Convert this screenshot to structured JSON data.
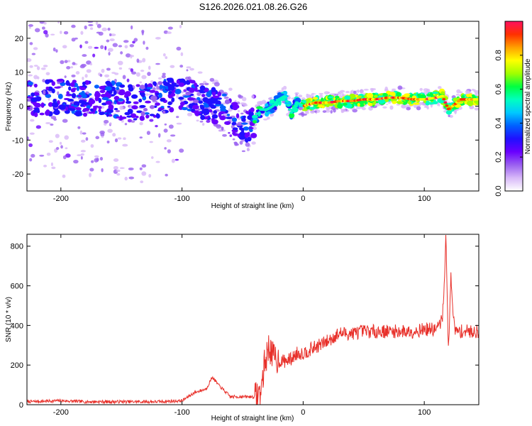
{
  "title": "S126.2026.021.08.26.G26",
  "chart_data": [
    {
      "type": "heatmap",
      "name": "spectrogram",
      "xlabel": "Height of straight line (km)",
      "ylabel": "Frequency (Hz)",
      "xlim": [
        -228,
        145
      ],
      "ylim": [
        -25,
        25
      ],
      "xticks": [
        -200,
        -100,
        0,
        100
      ],
      "yticks": [
        -20,
        -10,
        0,
        10,
        20
      ],
      "colorbar": {
        "label": "Normalized spectral amplitude",
        "range": [
          0,
          1
        ],
        "ticks": [
          0.0,
          0.2,
          0.4,
          0.6,
          0.8
        ],
        "colormap": [
          "#ffffff",
          "#d8b8f8",
          "#9a60f0",
          "#6a00ff",
          "#2010ff",
          "#0060ff",
          "#00c8ff",
          "#00ffc0",
          "#00ff40",
          "#a0ff00",
          "#ffff00",
          "#ffa000",
          "#ff3000",
          "#ff1060"
        ]
      },
      "ridge": {
        "x": [
          -228,
          -200,
          -180,
          -160,
          -140,
          -120,
          -100,
          -90,
          -80,
          -70,
          -60,
          -50,
          -45,
          -40,
          -35,
          -30,
          -25,
          -20,
          -15,
          -10,
          -5,
          0,
          10,
          20,
          30,
          40,
          50,
          60,
          70,
          80,
          90,
          100,
          110,
          115,
          120,
          130,
          145
        ],
        "y": [
          2,
          3,
          2,
          2,
          1,
          2,
          4,
          3,
          1,
          0,
          -3,
          -5,
          -7,
          -4,
          -1,
          -1,
          0,
          2,
          3,
          -2,
          1,
          0,
          1,
          1,
          1.5,
          1.5,
          2,
          2,
          2.5,
          2.5,
          2,
          2,
          2.5,
          3,
          -1,
          2,
          2
        ]
      }
    },
    {
      "type": "line",
      "name": "snr",
      "xlabel": "Height of straight line (km)",
      "ylabel": "SNR (10 * v/v)",
      "xlim": [
        -228,
        145
      ],
      "ylim": [
        0,
        860
      ],
      "xticks": [
        -200,
        -100,
        0,
        100
      ],
      "yticks": [
        0,
        200,
        400,
        600,
        800
      ],
      "color": "#e8302a",
      "series": [
        {
          "x": [
            -228,
            -200,
            -180,
            -160,
            -140,
            -120,
            -100,
            -90,
            -80,
            -75,
            -70,
            -60,
            -50,
            -40,
            -35,
            -32,
            -28,
            -25,
            -20,
            -15,
            -10,
            -5,
            0,
            10,
            20,
            30,
            40,
            50,
            60,
            70,
            80,
            90,
            100,
            110,
            115,
            118,
            120,
            122,
            125,
            130,
            145
          ],
          "y": [
            15,
            20,
            15,
            15,
            15,
            15,
            20,
            60,
            80,
            140,
            100,
            40,
            40,
            40,
            60,
            200,
            300,
            240,
            220,
            220,
            230,
            260,
            260,
            290,
            320,
            360,
            360,
            370,
            370,
            370,
            370,
            370,
            380,
            380,
            430,
            850,
            250,
            650,
            370,
            370,
            370
          ]
        }
      ]
    }
  ]
}
